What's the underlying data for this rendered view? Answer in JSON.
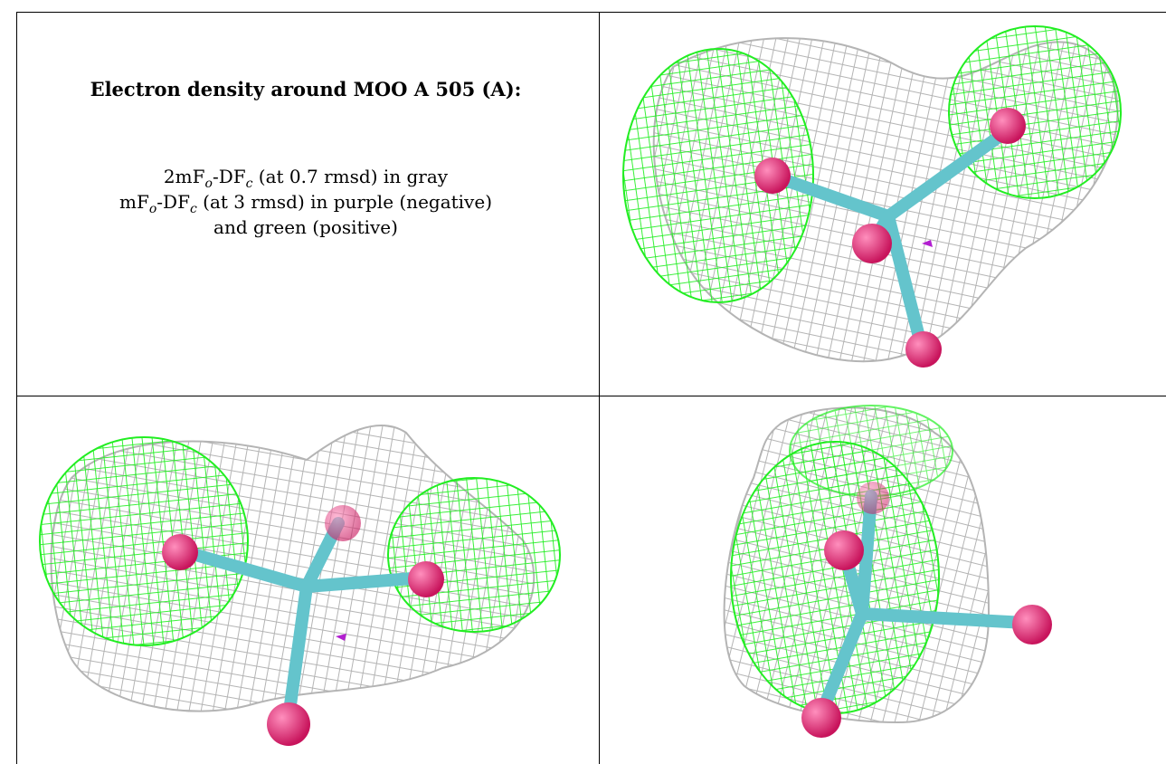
{
  "caption": {
    "title": "Electron density around MOO A 505 (A):",
    "line1": {
      "prefix": "2mF",
      "o": "o",
      "mid": "-DF",
      "c": "c",
      "suffix": " (at 0.7 rmsd) in gray"
    },
    "line2": {
      "prefix": "mF",
      "o": "o",
      "mid": "-DF",
      "c": "c",
      "suffix": " (at 3 rmsd) in purple (negative)"
    },
    "line3": "and green (positive)"
  },
  "colors": {
    "grid_line": "#000000",
    "mesh_gray": "#b4b4b4",
    "mesh_green": "#22ee22",
    "atom_oxygen": "#ee2a78",
    "atom_bond": "#64c4cc",
    "difference_negative": "#b21fd0"
  },
  "views": [
    {
      "name": "view-top-right"
    },
    {
      "name": "view-bottom-left"
    },
    {
      "name": "view-bottom-right"
    }
  ]
}
